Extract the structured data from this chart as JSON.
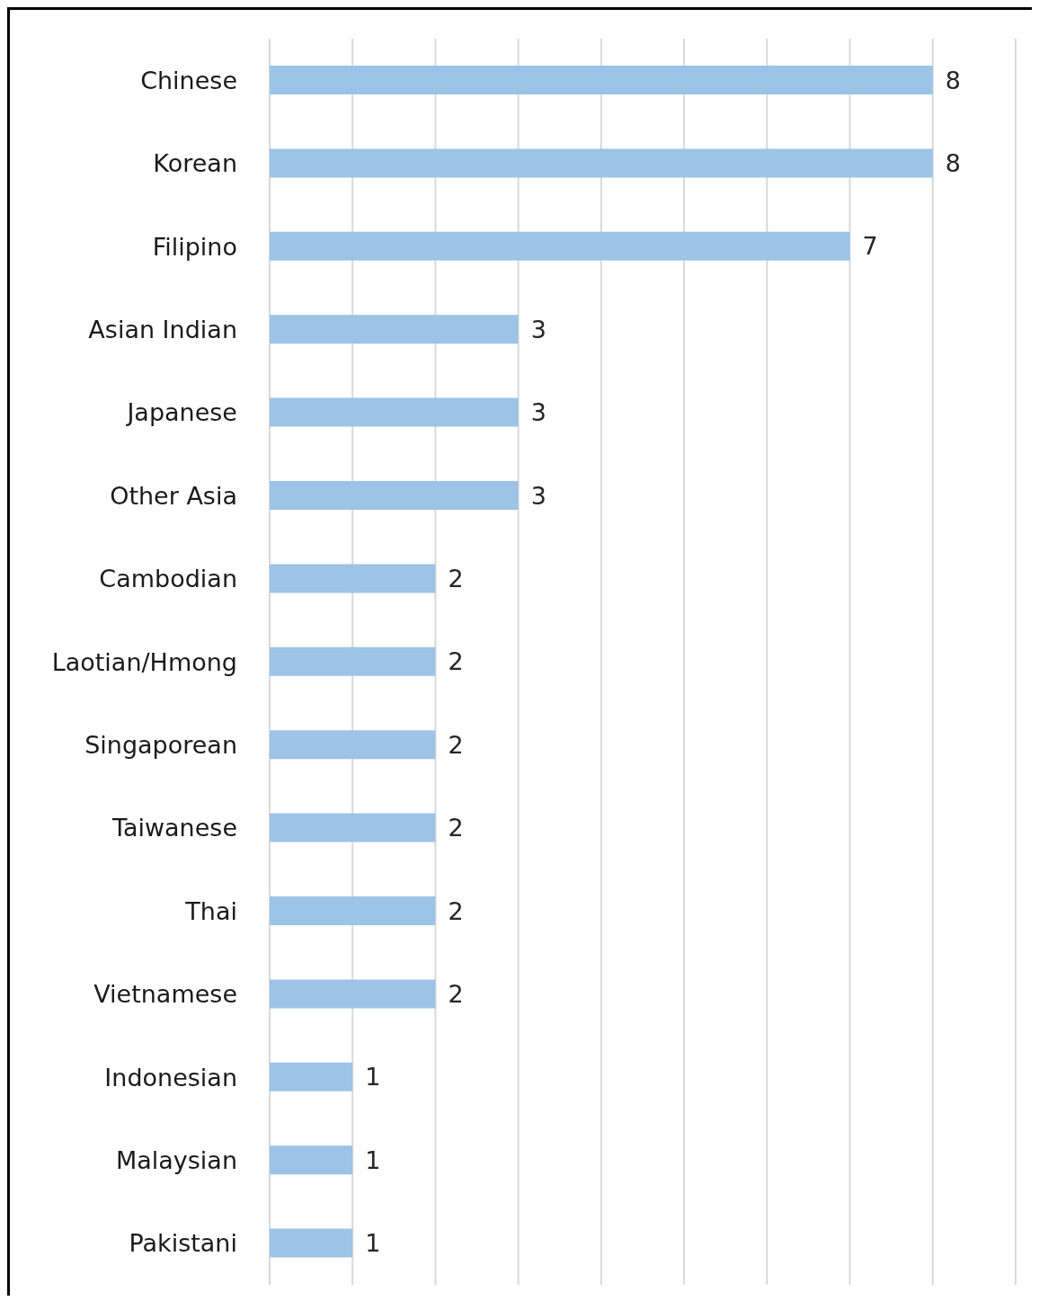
{
  "chart_data": {
    "type": "bar",
    "orientation": "horizontal",
    "categories": [
      "Chinese",
      "Korean",
      "Filipino",
      "Asian Indian",
      "Japanese",
      "Other Asia",
      "Cambodian",
      "Laotian/Hmong",
      "Singaporean",
      "Taiwanese",
      "Thai",
      "Vietnamese",
      "Indonesian",
      "Malaysian",
      "Pakistani"
    ],
    "values": [
      8,
      8,
      7,
      3,
      3,
      3,
      2,
      2,
      2,
      2,
      2,
      2,
      1,
      1,
      1
    ],
    "color": "#9dc3e6",
    "xlim": [
      0,
      9
    ],
    "tick_labels": "y",
    "grid": "x",
    "data_labels": true
  }
}
